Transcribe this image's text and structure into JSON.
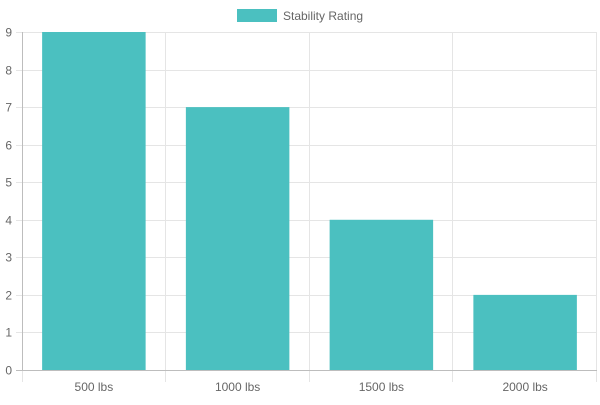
{
  "chart_data": {
    "type": "bar",
    "categories": [
      "500 lbs",
      "1000 lbs",
      "1500 lbs",
      "2000 lbs"
    ],
    "series": [
      {
        "name": "Stability Rating",
        "values": [
          9,
          7,
          4,
          2
        ],
        "color": "#4bc0c0"
      }
    ],
    "ylim": [
      0,
      9
    ],
    "y_ticks": [
      "0",
      "1",
      "2",
      "3",
      "4",
      "5",
      "6",
      "7",
      "8",
      "9"
    ],
    "grid": true,
    "legend": "top-center",
    "colors": {
      "grid": "#e5e5e5",
      "axis": "#bdbdbd",
      "text": "#666666"
    }
  }
}
